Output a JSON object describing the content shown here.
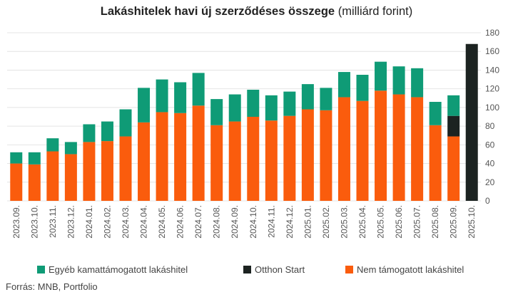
{
  "title": {
    "bold": "Lakáshitelek havi új szerződéses összege",
    "normal": "(milliárd forint)"
  },
  "source": "Forrás: MNB, Portfolio",
  "colors": {
    "subsidized": "#0f9b76",
    "otthon": "#1c2321",
    "non_subsidized": "#fa5c0d",
    "grid": "#e4e4e4"
  },
  "chart_data": {
    "type": "bar",
    "stacked": true,
    "title": "Lakáshitelek havi új szerződéses összege (milliárd forint)",
    "xlabel": "",
    "ylabel": "",
    "ylim": [
      0,
      180
    ],
    "yticks": [
      0,
      20,
      40,
      60,
      80,
      100,
      120,
      140,
      160,
      180
    ],
    "y_axis_position": "right",
    "grid": true,
    "legend_position": "bottom",
    "categories": [
      "2023.09.",
      "2023.10.",
      "2023.11.",
      "2023.12.",
      "2024.01.",
      "2024.02.",
      "2024.03.",
      "2024.04.",
      "2024.05.",
      "2024.06.",
      "2024.07.",
      "2024.08.",
      "2024.09.",
      "2024.10.",
      "2024.11.",
      "2024.12.",
      "2025.01.",
      "2025.02.",
      "2025.03.",
      "2025.04.",
      "2025.05.",
      "2025.06.",
      "2025.07.",
      "2025.08.",
      "2025.09.",
      "2025.10."
    ],
    "series": [
      {
        "name": "Nem támogatott lakáshitel",
        "color": "#fa5c0d",
        "values": [
          40,
          39,
          53,
          50,
          63,
          64,
          69,
          84,
          95,
          94,
          102,
          81,
          85,
          90,
          86,
          91,
          98,
          97,
          111,
          107,
          118,
          114,
          111,
          81,
          69,
          0
        ]
      },
      {
        "name": "Otthon Start",
        "color": "#1c2321",
        "values": [
          0,
          0,
          0,
          0,
          0,
          0,
          0,
          0,
          0,
          0,
          0,
          0,
          0,
          0,
          0,
          0,
          0,
          0,
          0,
          0,
          0,
          0,
          0,
          0,
          22,
          168
        ]
      },
      {
        "name": "Egyéb kamattámogatott lakáshitel",
        "color": "#0f9b76",
        "values": [
          12,
          13,
          14,
          13,
          19,
          21,
          29,
          37,
          35,
          33,
          35,
          28,
          29,
          29,
          27,
          26,
          27,
          24,
          27,
          28,
          31,
          30,
          31,
          25,
          22,
          0
        ]
      }
    ]
  },
  "legend": {
    "items": [
      {
        "label": "Egyéb kamattámogatott lakáshitel",
        "color": "#0f9b76"
      },
      {
        "label": "Otthon Start",
        "color": "#1c2321"
      },
      {
        "label": "Nem támogatott lakáshitel",
        "color": "#fa5c0d"
      }
    ]
  }
}
